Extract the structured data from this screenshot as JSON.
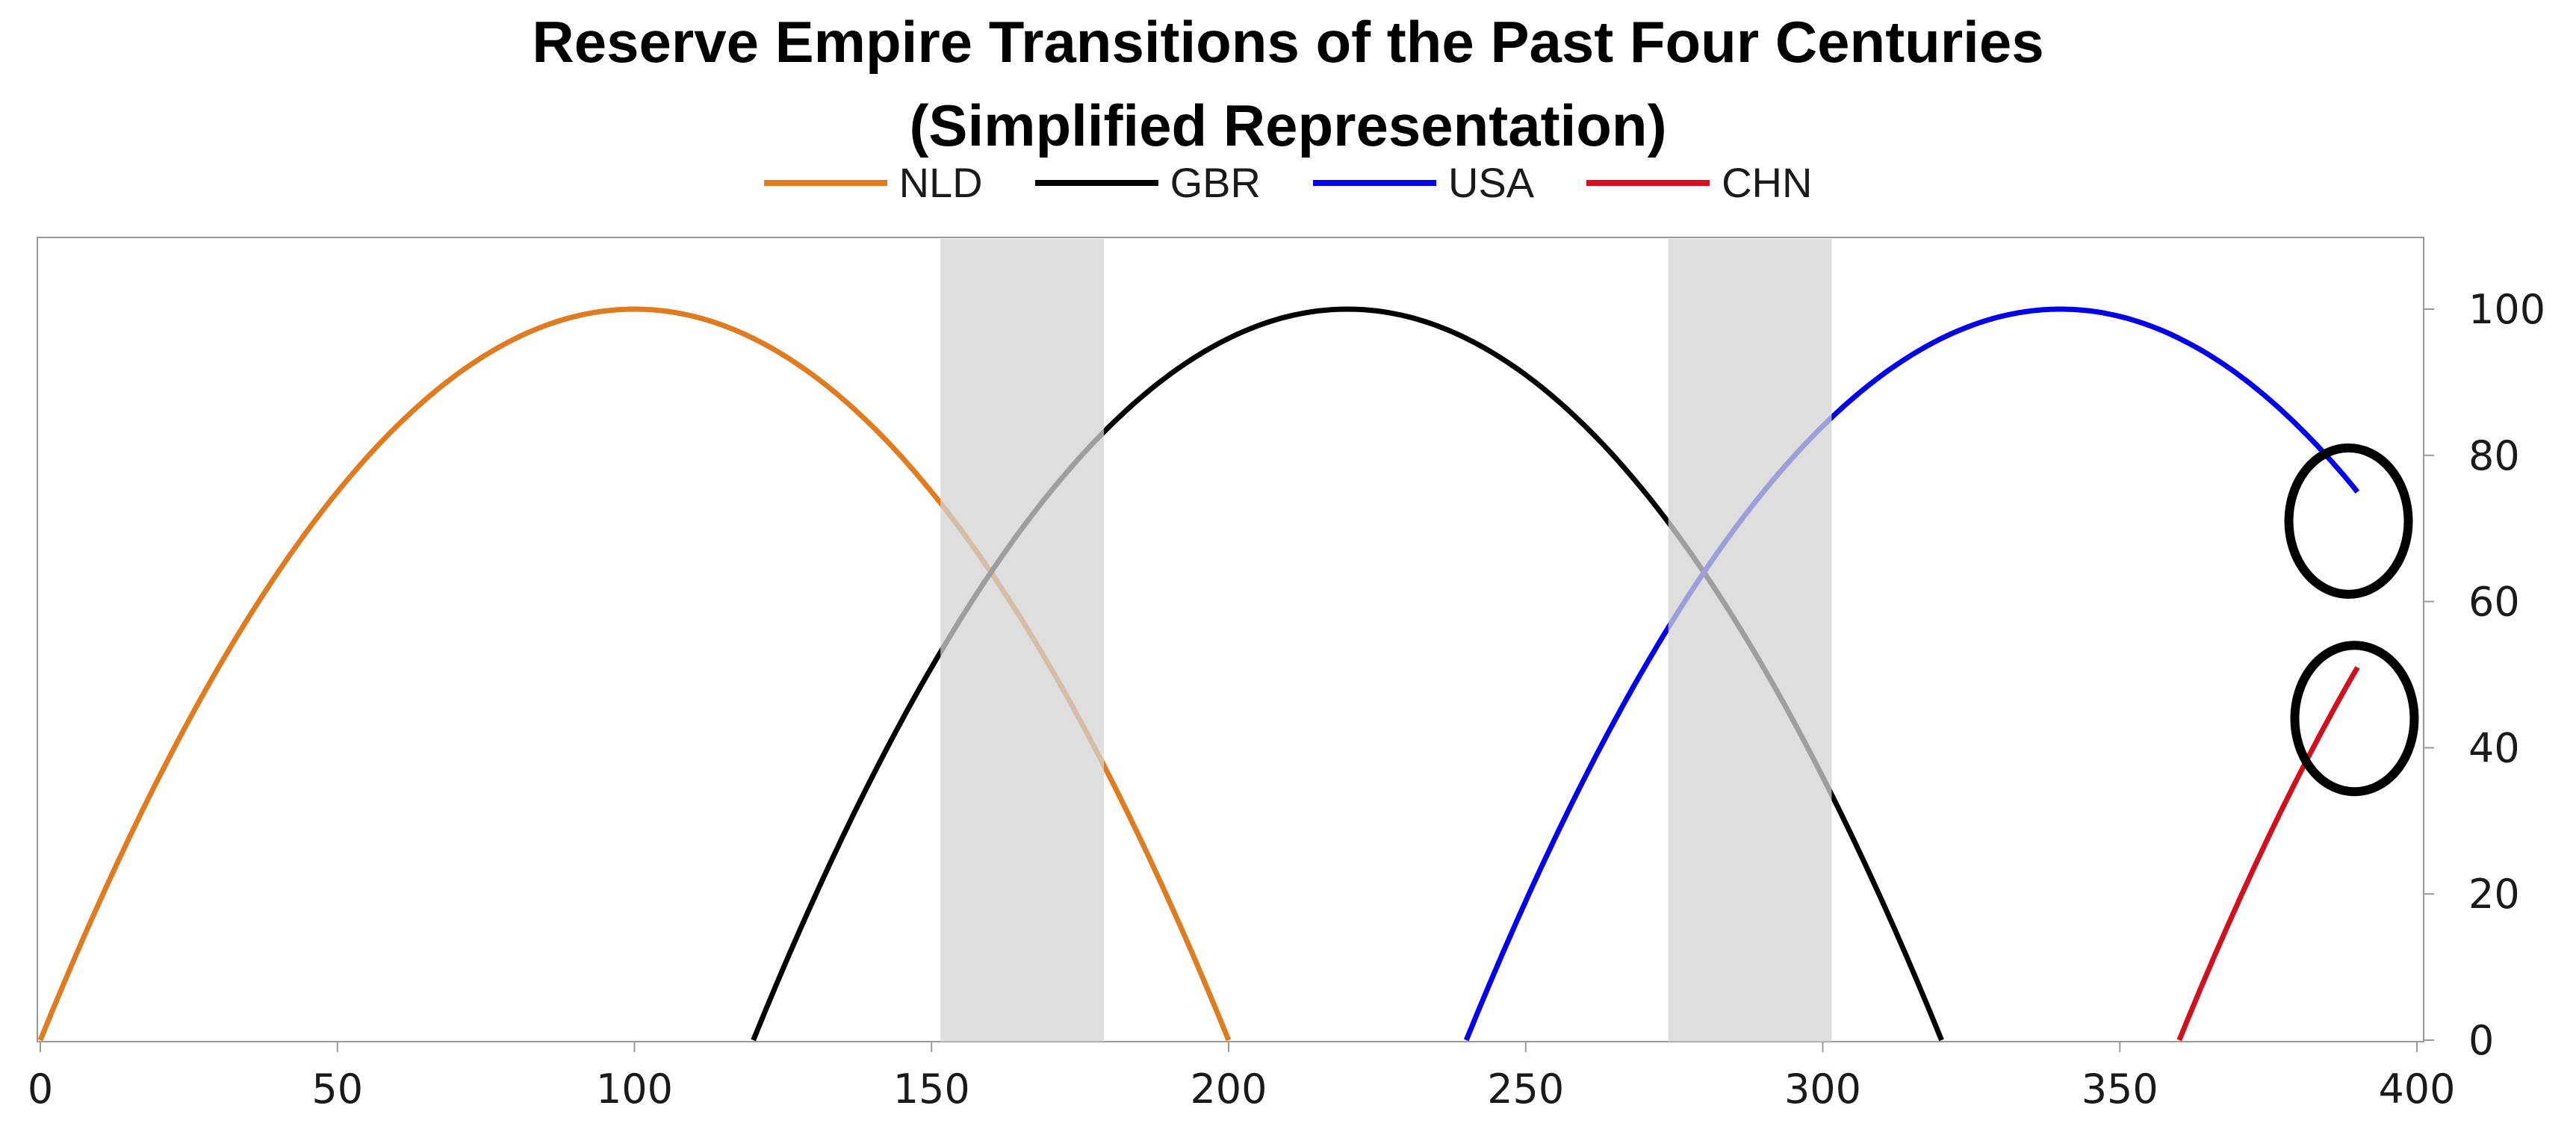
{
  "title_lines": [
    "Reserve Empire Transitions of the Past Four Centuries",
    "(Simplified Representation)"
  ],
  "chart_data": {
    "type": "line",
    "title": "Reserve Empire Transitions of the Past Four Centuries (Simplified Representation)",
    "xlabel": "",
    "ylabel": "",
    "xlim": [
      0,
      400
    ],
    "ylim": [
      0,
      110
    ],
    "x_ticks": [
      0,
      50,
      100,
      150,
      200,
      250,
      300,
      350,
      400
    ],
    "y_ticks": [
      0,
      20,
      40,
      60,
      80,
      100
    ],
    "y_axis_side": "right",
    "legend_position": "top-center",
    "grid": false,
    "series": [
      {
        "name": "NLD",
        "color": "#E07B20",
        "x_start": 0,
        "x_end": 200,
        "peak_x": 100,
        "peak_y": 100,
        "shape": "parabola"
      },
      {
        "name": "GBR",
        "color": "#000000",
        "x_start": 120,
        "x_end": 320,
        "peak_x": 220,
        "peak_y": 100,
        "shape": "parabola"
      },
      {
        "name": "USA",
        "color": "#0000EE",
        "x_start": 240,
        "x_end": 390,
        "peak_x": 340,
        "peak_y": 100,
        "shape": "parabola",
        "end_y": 71
      },
      {
        "name": "CHN",
        "color": "#D0101C",
        "x_start": 360,
        "x_end": 390,
        "peak_x": 460,
        "peak_y": 100,
        "shape": "parabola",
        "end_y": 45
      }
    ],
    "shaded_regions": [
      {
        "x_from": 151.5,
        "x_to": 179,
        "color": "#d3d3d3"
      },
      {
        "x_from": 274,
        "x_to": 301.5,
        "color": "#d3d3d3"
      }
    ],
    "annotations": [
      {
        "type": "circle",
        "x": 388.5,
        "y": 71,
        "color": "#000000"
      },
      {
        "type": "circle",
        "x": 389.5,
        "y": 44,
        "color": "#000000"
      }
    ]
  }
}
